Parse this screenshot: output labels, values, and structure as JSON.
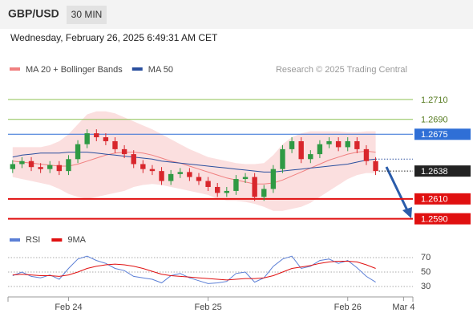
{
  "header": {
    "symbol": "GBP/USD",
    "interval": "30 MIN",
    "timestamp": "Wednesday, February 26, 2025 6:49:31 AM CET"
  },
  "chart_data": [
    {
      "type": "candlestick",
      "legend": [
        {
          "name": "MA 20 + Bollinger Bands",
          "color": "#f08080"
        },
        {
          "name": "MA 50",
          "color": "#2a4f9e"
        }
      ],
      "credit": "Research © 2025 Trading Central",
      "xlim": [
        -0.5,
        43
      ],
      "ylim": [
        1.258,
        1.276
      ],
      "open": [
        1.264,
        1.2645,
        1.2648,
        1.2642,
        1.264,
        1.2644,
        1.2638,
        1.265,
        1.2665,
        1.2676,
        1.2672,
        1.2668,
        1.266,
        1.2655,
        1.2645,
        1.264,
        1.2638,
        1.2628,
        1.2635,
        1.2637,
        1.2632,
        1.2628,
        1.2622,
        1.2616,
        1.2618,
        1.263,
        1.2632,
        1.2612,
        1.262,
        1.264,
        1.266,
        1.2668,
        1.265,
        1.2655,
        1.2665,
        1.2668,
        1.2662,
        1.2668,
        1.266,
        1.2648
      ],
      "high": [
        1.2649,
        1.2652,
        1.2652,
        1.2646,
        1.2648,
        1.2648,
        1.2654,
        1.2669,
        1.268,
        1.268,
        1.2676,
        1.2672,
        1.2664,
        1.2659,
        1.2649,
        1.2644,
        1.2642,
        1.2639,
        1.2641,
        1.2641,
        1.2636,
        1.2632,
        1.2626,
        1.2622,
        1.2634,
        1.2636,
        1.2636,
        1.2624,
        1.2644,
        1.2664,
        1.2672,
        1.2672,
        1.2659,
        1.2669,
        1.2672,
        1.2672,
        1.2672,
        1.2672,
        1.2664,
        1.2652
      ],
      "low": [
        1.2636,
        1.2641,
        1.2638,
        1.2636,
        1.2636,
        1.2634,
        1.2634,
        1.2646,
        1.2661,
        1.2668,
        1.2664,
        1.2656,
        1.2651,
        1.2641,
        1.2636,
        1.2634,
        1.2624,
        1.2624,
        1.2631,
        1.2628,
        1.2624,
        1.2618,
        1.2612,
        1.2612,
        1.2614,
        1.2626,
        1.2608,
        1.2608,
        1.2616,
        1.2636,
        1.2656,
        1.2646,
        1.2646,
        1.2651,
        1.2661,
        1.2658,
        1.2658,
        1.2656,
        1.2644,
        1.2634
      ],
      "close": [
        1.2645,
        1.2648,
        1.2642,
        1.264,
        1.2644,
        1.2638,
        1.265,
        1.2665,
        1.2676,
        1.2672,
        1.2668,
        1.266,
        1.2655,
        1.2645,
        1.264,
        1.2638,
        1.2628,
        1.2635,
        1.2637,
        1.2632,
        1.2628,
        1.2622,
        1.2616,
        1.2618,
        1.263,
        1.2632,
        1.2612,
        1.262,
        1.264,
        1.266,
        1.2668,
        1.265,
        1.2655,
        1.2665,
        1.2668,
        1.2662,
        1.2668,
        1.266,
        1.2648,
        1.2638
      ],
      "up_color": "#2f9a44",
      "down_color": "#d8262c",
      "ma20": [
        1.2648,
        1.2647,
        1.2646,
        1.2645,
        1.2644,
        1.2643,
        1.2643,
        1.2645,
        1.2648,
        1.2651,
        1.2654,
        1.2656,
        1.2657,
        1.2657,
        1.2656,
        1.2654,
        1.2651,
        1.2648,
        1.2646,
        1.2643,
        1.264,
        1.2637,
        1.2634,
        1.2631,
        1.2629,
        1.2627,
        1.2625,
        1.2625,
        1.2626,
        1.2629,
        1.2633,
        1.2637,
        1.2641,
        1.2645,
        1.2649,
        1.2652,
        1.2655,
        1.2657,
        1.2658,
        1.2657
      ],
      "bb_upper": [
        1.2662,
        1.2662,
        1.2662,
        1.2662,
        1.2664,
        1.2668,
        1.2675,
        1.2685,
        1.2695,
        1.2698,
        1.2698,
        1.2696,
        1.2692,
        1.2688,
        1.2684,
        1.268,
        1.2675,
        1.267,
        1.2665,
        1.266,
        1.2656,
        1.2652,
        1.265,
        1.2648,
        1.2646,
        1.2645,
        1.2645,
        1.2646,
        1.2654,
        1.2665,
        1.2672,
        1.2676,
        1.2678,
        1.2678,
        1.2678,
        1.2678,
        1.2677,
        1.2677,
        1.2678,
        1.2678
      ],
      "bb_lower": [
        1.2632,
        1.263,
        1.2628,
        1.2626,
        1.2624,
        1.262,
        1.2615,
        1.2612,
        1.261,
        1.2612,
        1.2614,
        1.2616,
        1.2618,
        1.2622,
        1.2624,
        1.2625,
        1.2624,
        1.2622,
        1.262,
        1.2618,
        1.2616,
        1.2614,
        1.261,
        1.2608,
        1.2608,
        1.2607,
        1.2605,
        1.2602,
        1.2598,
        1.2598,
        1.26,
        1.2602,
        1.2606,
        1.2612,
        1.2618,
        1.2624,
        1.263,
        1.2634,
        1.2636,
        1.2636
      ],
      "ma50": [
        1.2652,
        1.2654,
        1.2655,
        1.2656,
        1.2656,
        1.2656,
        1.2657,
        1.2657,
        1.2657,
        1.2656,
        1.2655,
        1.2654,
        1.2653,
        1.2652,
        1.2651,
        1.265,
        1.2648,
        1.2647,
        1.2646,
        1.2645,
        1.2644,
        1.2643,
        1.2642,
        1.2641,
        1.264,
        1.2639,
        1.2638,
        1.2637,
        1.2637,
        1.2638,
        1.2639,
        1.264,
        1.2641,
        1.2642,
        1.2643,
        1.2644,
        1.2645,
        1.2647,
        1.2649,
        1.265
      ],
      "levels": [
        {
          "price": {
            "value": 1.271,
            "label": "1.2710"
          },
          "color": "#8cc152",
          "line": "solid",
          "boxed": false
        },
        {
          "price": {
            "value": 1.269,
            "label": "1.2690"
          },
          "color": "#8cc152",
          "line": "solid",
          "boxed": false
        },
        {
          "price": 1.2675,
          "color": "#2f6fd6",
          "line": "solid",
          "boxed": true
        },
        {
          "price": 1.2638,
          "color": "#222222",
          "line": "dotted",
          "boxed": true
        },
        {
          "price": {
            "value": 1.261,
            "label": "1.2610"
          },
          "color": "#e01010",
          "line": "thick",
          "boxed": true
        },
        {
          "price": {
            "value": 1.259,
            "label": "1.2590"
          },
          "color": "#e01010",
          "line": "thick",
          "boxed": true
        }
      ]
    },
    {
      "type": "line",
      "series": [
        {
          "name": "RSI",
          "color": "#5b7fd6",
          "values": [
            45,
            50,
            44,
            42,
            46,
            40,
            55,
            68,
            72,
            66,
            62,
            55,
            52,
            44,
            42,
            40,
            35,
            45,
            48,
            42,
            38,
            34,
            35,
            37,
            48,
            50,
            36,
            42,
            58,
            68,
            72,
            55,
            58,
            66,
            68,
            62,
            66,
            56,
            44,
            36
          ]
        },
        {
          "name": "9MA",
          "color": "#e01010",
          "values": [
            46,
            47,
            46,
            45,
            45,
            44,
            46,
            50,
            55,
            58,
            60,
            61,
            60,
            58,
            55,
            51,
            47,
            45,
            44,
            43,
            42,
            41,
            40,
            39,
            40,
            41,
            41,
            42,
            45,
            50,
            55,
            57,
            59,
            62,
            64,
            65,
            65,
            64,
            60,
            55
          ]
        }
      ],
      "xlim": [
        -0.5,
        43
      ],
      "ylim": [
        20,
        80
      ],
      "yticks": [
        30,
        50,
        70
      ],
      "xticks": [
        {
          "value": 6,
          "label": "Feb 24"
        },
        {
          "value": 21,
          "label": "Feb 25"
        },
        {
          "value": 36,
          "label": "Feb 26"
        },
        {
          "value": 42,
          "label": "Mar 4"
        }
      ]
    }
  ]
}
